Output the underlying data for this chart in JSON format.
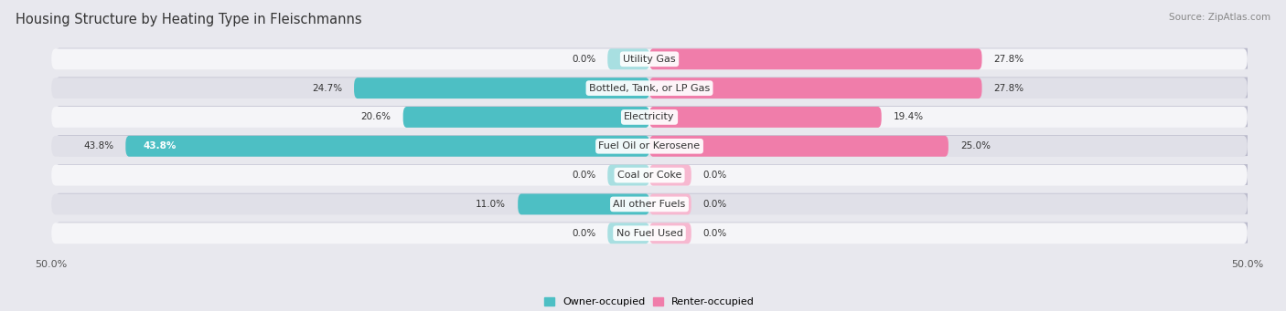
{
  "title": "Housing Structure by Heating Type in Fleischmanns",
  "source_text": "Source: ZipAtlas.com",
  "categories": [
    "Utility Gas",
    "Bottled, Tank, or LP Gas",
    "Electricity",
    "Fuel Oil or Kerosene",
    "Coal or Coke",
    "All other Fuels",
    "No Fuel Used"
  ],
  "owner_values": [
    0.0,
    24.7,
    20.6,
    43.8,
    0.0,
    11.0,
    0.0
  ],
  "renter_values": [
    27.8,
    27.8,
    19.4,
    25.0,
    0.0,
    0.0,
    0.0
  ],
  "owner_color": "#4dbfc4",
  "renter_color": "#f07daa",
  "owner_color_light": "#a8dfe1",
  "renter_color_light": "#f7b8d0",
  "owner_label": "Owner-occupied",
  "renter_label": "Renter-occupied",
  "xlim": 50.0,
  "background_color": "#e8e8ee",
  "row_bg_color_odd": "#f5f5f8",
  "row_bg_color_even": "#e0e0e8",
  "title_fontsize": 10.5,
  "source_fontsize": 7.5,
  "label_fontsize": 8,
  "value_fontsize": 7.5,
  "axis_fontsize": 8,
  "legend_fontsize": 8
}
